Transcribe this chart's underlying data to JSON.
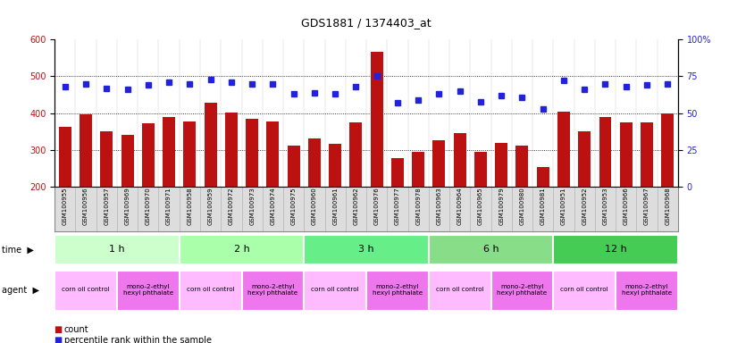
{
  "title": "GDS1881 / 1374403_at",
  "samples": [
    "GSM100955",
    "GSM100956",
    "GSM100957",
    "GSM100969",
    "GSM100970",
    "GSM100971",
    "GSM100958",
    "GSM100959",
    "GSM100972",
    "GSM100973",
    "GSM100974",
    "GSM100975",
    "GSM100960",
    "GSM100961",
    "GSM100962",
    "GSM100976",
    "GSM100977",
    "GSM100978",
    "GSM100963",
    "GSM100964",
    "GSM100965",
    "GSM100979",
    "GSM100980",
    "GSM100981",
    "GSM100951",
    "GSM100952",
    "GSM100953",
    "GSM100966",
    "GSM100967",
    "GSM100968"
  ],
  "counts": [
    362,
    398,
    351,
    341,
    373,
    389,
    378,
    429,
    402,
    385,
    378,
    311,
    331,
    318,
    374,
    567,
    279,
    294,
    326,
    345,
    295,
    319,
    311,
    255,
    405,
    352,
    389,
    374,
    375,
    399
  ],
  "percentile_ranks": [
    68,
    70,
    67,
    66,
    69,
    71,
    70,
    73,
    71,
    70,
    70,
    63,
    64,
    63,
    68,
    75,
    57,
    59,
    63,
    65,
    58,
    62,
    61,
    53,
    72,
    66,
    70,
    68,
    69,
    70
  ],
  "bar_color": "#bb1111",
  "dot_color": "#2222dd",
  "ylim_left": [
    200,
    600
  ],
  "ylim_right": [
    0,
    100
  ],
  "yticks_left": [
    200,
    300,
    400,
    500,
    600
  ],
  "yticks_right": [
    0,
    25,
    50,
    75,
    100
  ],
  "time_groups": [
    {
      "label": "1 h",
      "start": 0,
      "end": 6,
      "color": "#ccffcc"
    },
    {
      "label": "2 h",
      "start": 6,
      "end": 12,
      "color": "#aaffaa"
    },
    {
      "label": "3 h",
      "start": 12,
      "end": 18,
      "color": "#66ee88"
    },
    {
      "label": "6 h",
      "start": 18,
      "end": 24,
      "color": "#88dd88"
    },
    {
      "label": "12 h",
      "start": 24,
      "end": 30,
      "color": "#44cc55"
    }
  ],
  "agent_groups": [
    {
      "label": "corn oil control",
      "start": 0,
      "end": 3,
      "color": "#ffbbff"
    },
    {
      "label": "mono-2-ethyl\nhexyl phthalate",
      "start": 3,
      "end": 6,
      "color": "#ee77ee"
    },
    {
      "label": "corn oil control",
      "start": 6,
      "end": 9,
      "color": "#ffbbff"
    },
    {
      "label": "mono-2-ethyl\nhexyl phthalate",
      "start": 9,
      "end": 12,
      "color": "#ee77ee"
    },
    {
      "label": "corn oil control",
      "start": 12,
      "end": 15,
      "color": "#ffbbff"
    },
    {
      "label": "mono-2-ethyl\nhexyl phthalate",
      "start": 15,
      "end": 18,
      "color": "#ee77ee"
    },
    {
      "label": "corn oil control",
      "start": 18,
      "end": 21,
      "color": "#ffbbff"
    },
    {
      "label": "mono-2-ethyl\nhexyl phthalate",
      "start": 21,
      "end": 24,
      "color": "#ee77ee"
    },
    {
      "label": "corn oil control",
      "start": 24,
      "end": 27,
      "color": "#ffbbff"
    },
    {
      "label": "mono-2-ethyl\nhexyl phthalate",
      "start": 27,
      "end": 30,
      "color": "#ee77ee"
    }
  ],
  "bg_color": "#ffffff",
  "xtick_bg": "#dddddd"
}
